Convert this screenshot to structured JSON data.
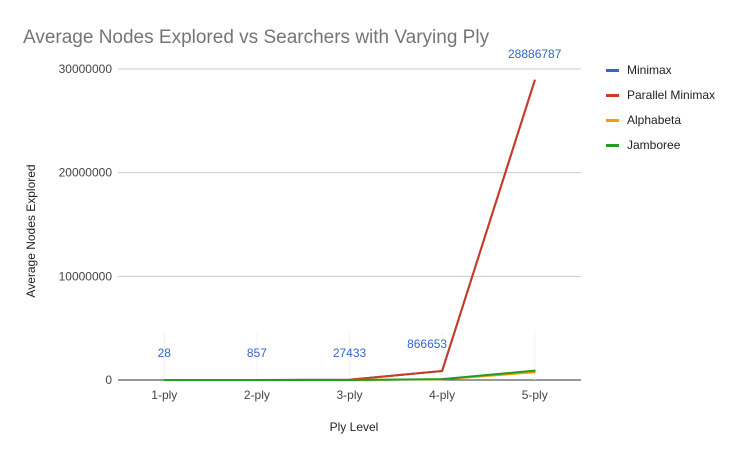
{
  "chart_data": {
    "type": "line",
    "title": "Average Nodes Explored vs Searchers with Varying Ply",
    "xlabel": "Ply Level",
    "ylabel": "Average Nodes Explored",
    "categories": [
      "1-ply",
      "2-ply",
      "3-ply",
      "4-ply",
      "5-ply"
    ],
    "ylim": [
      0,
      30000000
    ],
    "yticks": [
      0,
      10000000,
      20000000,
      30000000
    ],
    "grid": true,
    "legend_position": "right",
    "series": [
      {
        "name": "Minimax",
        "color": "#3366cc",
        "values": [
          28,
          857,
          27433,
          866653,
          28886787
        ]
      },
      {
        "name": "Parallel Minimax",
        "color": "#cc3b1f",
        "values": [
          28,
          857,
          27433,
          866653,
          28886787
        ]
      },
      {
        "name": "Alphabeta",
        "color": "#ff9900",
        "values": [
          10,
          100,
          2000,
          60000,
          750000
        ]
      },
      {
        "name": "Jamboree",
        "color": "#1f9e1f",
        "values": [
          10,
          150,
          3000,
          80000,
          900000
        ]
      }
    ],
    "data_labels": {
      "series": "Minimax",
      "color": "#3366cc",
      "values": [
        "28",
        "857",
        "27433",
        "866653",
        "28886787"
      ]
    }
  }
}
